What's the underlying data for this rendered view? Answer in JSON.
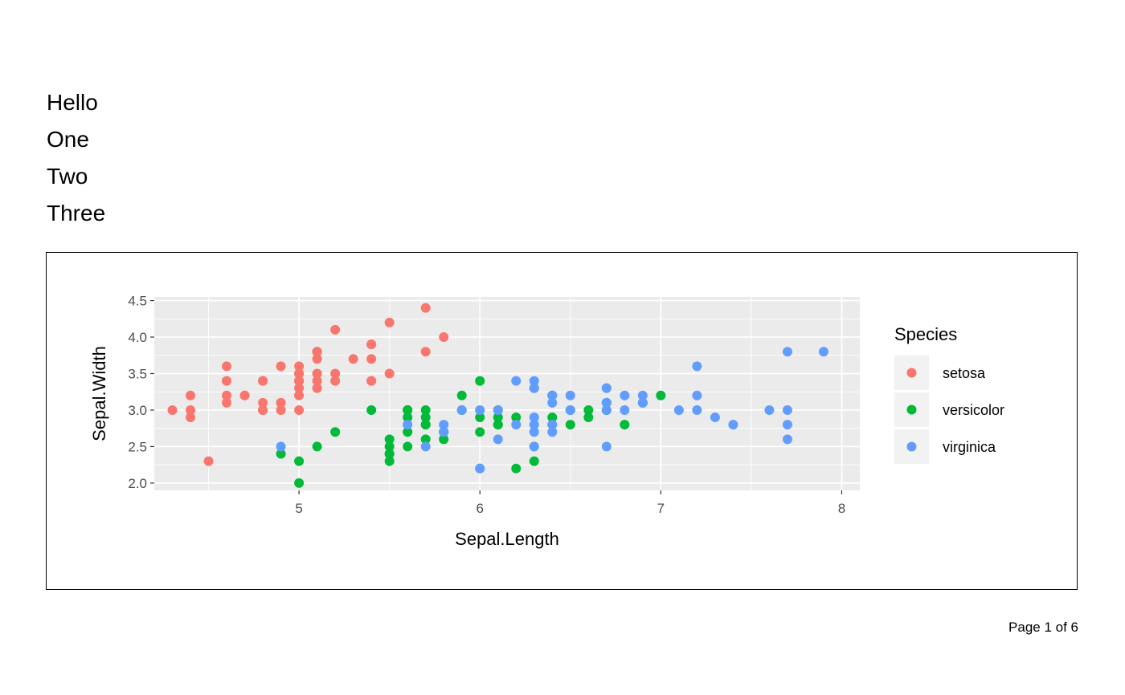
{
  "header": {
    "lines": [
      "Hello",
      "One",
      "Two",
      "Three"
    ]
  },
  "footer": {
    "page_label": "Page 1 of 6"
  },
  "chart_data": {
    "type": "scatter",
    "xlabel": "Sepal.Length",
    "ylabel": "Sepal.Width",
    "xlim": [
      4.2,
      8.1
    ],
    "ylim": [
      1.9,
      4.55
    ],
    "x_ticks": [
      5,
      6,
      7,
      8
    ],
    "y_ticks": [
      2.0,
      2.5,
      3.0,
      3.5,
      4.0,
      4.5
    ],
    "y_tick_labels": [
      "2.0",
      "2.5",
      "3.0",
      "3.5",
      "4.0",
      "4.5"
    ],
    "grid": true,
    "legend": {
      "title": "Species",
      "position": "right"
    },
    "series": [
      {
        "name": "setosa",
        "color": "#F8766D",
        "points": [
          [
            5.1,
            3.5
          ],
          [
            4.9,
            3.0
          ],
          [
            4.7,
            3.2
          ],
          [
            4.6,
            3.1
          ],
          [
            5.0,
            3.6
          ],
          [
            5.4,
            3.9
          ],
          [
            4.6,
            3.4
          ],
          [
            5.0,
            3.4
          ],
          [
            4.4,
            2.9
          ],
          [
            4.9,
            3.1
          ],
          [
            5.4,
            3.7
          ],
          [
            4.8,
            3.4
          ],
          [
            4.8,
            3.0
          ],
          [
            4.3,
            3.0
          ],
          [
            5.8,
            4.0
          ],
          [
            5.7,
            4.4
          ],
          [
            5.4,
            3.9
          ],
          [
            5.1,
            3.5
          ],
          [
            5.7,
            3.8
          ],
          [
            5.1,
            3.8
          ],
          [
            5.4,
            3.4
          ],
          [
            5.1,
            3.7
          ],
          [
            4.6,
            3.6
          ],
          [
            5.1,
            3.3
          ],
          [
            4.8,
            3.4
          ],
          [
            5.0,
            3.0
          ],
          [
            5.0,
            3.4
          ],
          [
            5.2,
            3.5
          ],
          [
            5.2,
            3.4
          ],
          [
            4.7,
            3.2
          ],
          [
            4.8,
            3.1
          ],
          [
            5.4,
            3.4
          ],
          [
            5.2,
            4.1
          ],
          [
            5.5,
            4.2
          ],
          [
            4.9,
            3.1
          ],
          [
            5.0,
            3.2
          ],
          [
            5.5,
            3.5
          ],
          [
            4.9,
            3.6
          ],
          [
            4.4,
            3.0
          ],
          [
            5.1,
            3.4
          ],
          [
            5.0,
            3.5
          ],
          [
            4.5,
            2.3
          ],
          [
            4.4,
            3.2
          ],
          [
            5.0,
            3.5
          ],
          [
            5.1,
            3.8
          ],
          [
            4.8,
            3.0
          ],
          [
            5.1,
            3.8
          ],
          [
            4.6,
            3.2
          ],
          [
            5.3,
            3.7
          ],
          [
            5.0,
            3.3
          ]
        ]
      },
      {
        "name": "versicolor",
        "color": "#00BA38",
        "points": [
          [
            7.0,
            3.2
          ],
          [
            6.4,
            3.2
          ],
          [
            6.9,
            3.1
          ],
          [
            5.5,
            2.3
          ],
          [
            6.5,
            2.8
          ],
          [
            5.7,
            2.8
          ],
          [
            6.3,
            3.3
          ],
          [
            4.9,
            2.4
          ],
          [
            6.6,
            2.9
          ],
          [
            5.2,
            2.7
          ],
          [
            5.0,
            2.0
          ],
          [
            5.9,
            3.0
          ],
          [
            6.0,
            2.2
          ],
          [
            6.1,
            2.9
          ],
          [
            5.6,
            2.9
          ],
          [
            6.7,
            3.1
          ],
          [
            5.6,
            3.0
          ],
          [
            5.8,
            2.7
          ],
          [
            6.2,
            2.2
          ],
          [
            5.6,
            2.5
          ],
          [
            5.9,
            3.2
          ],
          [
            6.1,
            2.8
          ],
          [
            6.3,
            2.5
          ],
          [
            6.1,
            2.8
          ],
          [
            6.4,
            2.9
          ],
          [
            6.6,
            3.0
          ],
          [
            6.8,
            2.8
          ],
          [
            6.7,
            3.0
          ],
          [
            6.0,
            2.9
          ],
          [
            5.7,
            2.6
          ],
          [
            5.5,
            2.4
          ],
          [
            5.5,
            2.4
          ],
          [
            5.8,
            2.7
          ],
          [
            6.0,
            2.7
          ],
          [
            5.4,
            3.0
          ],
          [
            6.0,
            3.4
          ],
          [
            6.7,
            3.1
          ],
          [
            6.3,
            2.3
          ],
          [
            5.6,
            3.0
          ],
          [
            5.5,
            2.5
          ],
          [
            5.5,
            2.6
          ],
          [
            6.1,
            3.0
          ],
          [
            5.8,
            2.6
          ],
          [
            5.0,
            2.3
          ],
          [
            5.6,
            2.7
          ],
          [
            5.7,
            3.0
          ],
          [
            5.7,
            2.9
          ],
          [
            6.2,
            2.9
          ],
          [
            5.1,
            2.5
          ],
          [
            5.7,
            2.8
          ]
        ]
      },
      {
        "name": "virginica",
        "color": "#619CFF",
        "points": [
          [
            6.3,
            3.3
          ],
          [
            5.8,
            2.7
          ],
          [
            7.1,
            3.0
          ],
          [
            6.3,
            2.9
          ],
          [
            6.5,
            3.0
          ],
          [
            7.6,
            3.0
          ],
          [
            4.9,
            2.5
          ],
          [
            7.3,
            2.9
          ],
          [
            6.7,
            2.5
          ],
          [
            7.2,
            3.6
          ],
          [
            6.5,
            3.2
          ],
          [
            6.4,
            2.7
          ],
          [
            6.8,
            3.0
          ],
          [
            5.7,
            2.5
          ],
          [
            5.8,
            2.8
          ],
          [
            6.4,
            3.2
          ],
          [
            6.5,
            3.0
          ],
          [
            7.7,
            3.8
          ],
          [
            7.7,
            2.6
          ],
          [
            6.0,
            2.2
          ],
          [
            6.9,
            3.2
          ],
          [
            5.6,
            2.8
          ],
          [
            7.7,
            2.8
          ],
          [
            6.3,
            2.7
          ],
          [
            6.7,
            3.3
          ],
          [
            7.2,
            3.2
          ],
          [
            6.2,
            2.8
          ],
          [
            6.1,
            3.0
          ],
          [
            6.4,
            2.8
          ],
          [
            7.2,
            3.0
          ],
          [
            7.4,
            2.8
          ],
          [
            7.9,
            3.8
          ],
          [
            6.4,
            2.8
          ],
          [
            6.3,
            2.8
          ],
          [
            6.1,
            2.6
          ],
          [
            7.7,
            3.0
          ],
          [
            6.3,
            3.4
          ],
          [
            6.4,
            3.1
          ],
          [
            6.0,
            3.0
          ],
          [
            6.9,
            3.1
          ],
          [
            6.7,
            3.1
          ],
          [
            6.9,
            3.1
          ],
          [
            5.8,
            2.7
          ],
          [
            6.8,
            3.2
          ],
          [
            6.7,
            3.3
          ],
          [
            6.7,
            3.0
          ],
          [
            6.3,
            2.5
          ],
          [
            6.5,
            3.0
          ],
          [
            6.2,
            3.4
          ],
          [
            5.9,
            3.0
          ]
        ]
      }
    ]
  }
}
